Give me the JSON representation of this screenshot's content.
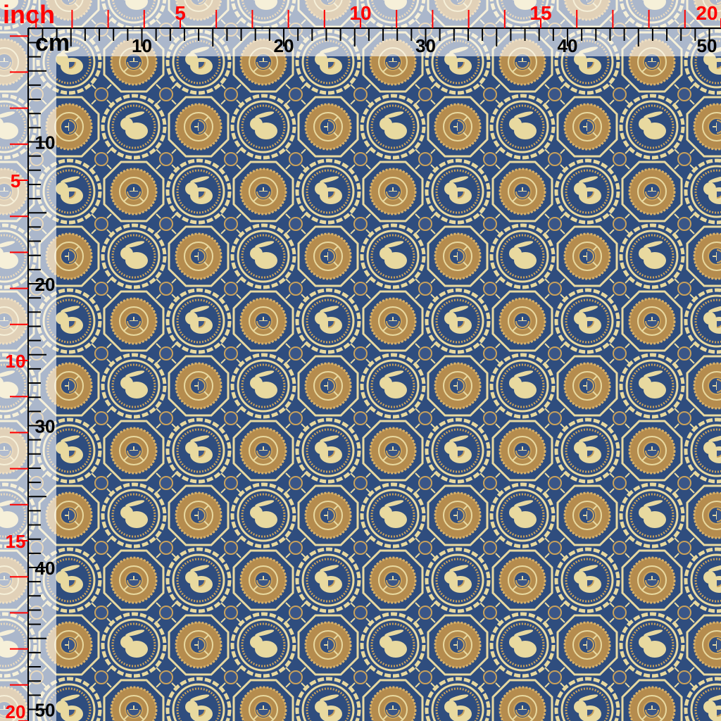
{
  "rulers": {
    "inch_unit_label": "inch",
    "cm_unit_label": "cm",
    "top_inch_labels": [
      "5",
      "10",
      "15",
      "20"
    ],
    "top_cm_labels": [
      "10",
      "20",
      "30",
      "40",
      "50"
    ],
    "left_inch_labels": [
      "5",
      "10",
      "15",
      "20"
    ],
    "left_cm_labels": [
      "10",
      "20",
      "30",
      "40",
      "50"
    ]
  },
  "colors": {
    "fabric_ground": "#2f4d7e",
    "gold_light": "#e8d9a0",
    "gold_dark": "#c9a15a",
    "inch_marks": "#ff0000",
    "cm_marks": "#000000"
  },
  "fabric": {
    "motifs": [
      "rabbit-medallion",
      "octagon-knot-medallion",
      "small-knot-medallion"
    ]
  }
}
